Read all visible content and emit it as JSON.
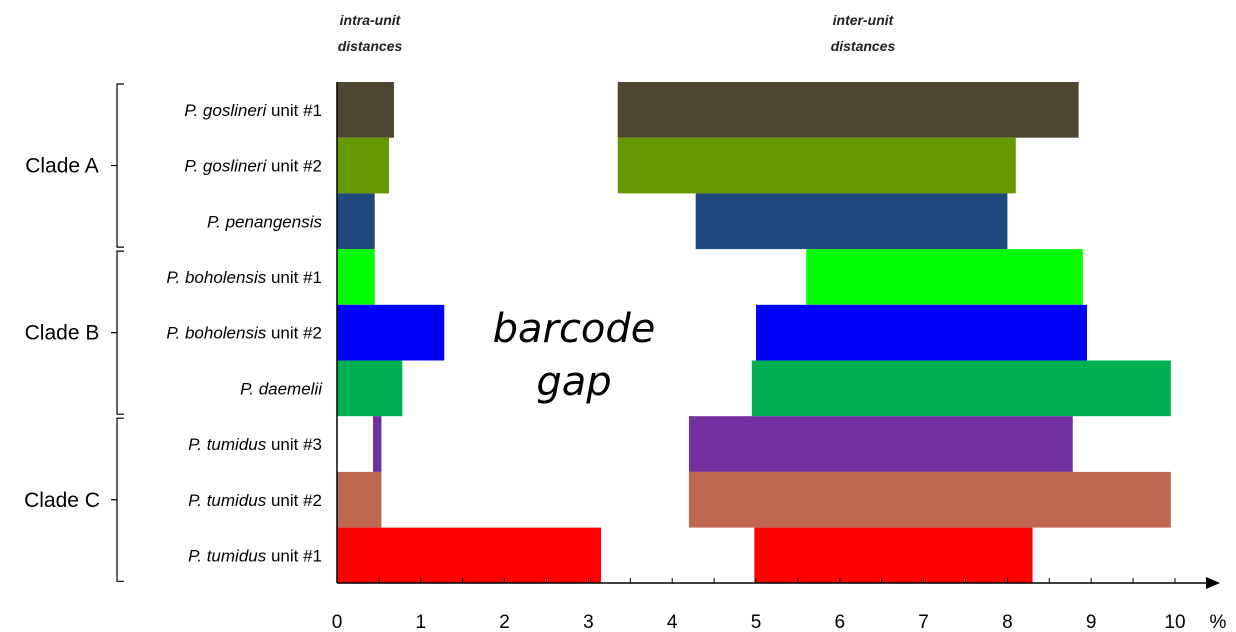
{
  "chart_data": {
    "type": "bar",
    "orientation": "horizontal",
    "column_headers": {
      "intra": [
        "intra-unit",
        "distances"
      ],
      "inter": [
        "inter-unit",
        "distances"
      ]
    },
    "annotation": [
      "barcode",
      "gap"
    ],
    "axis": {
      "unit": "%",
      "xlim": [
        0,
        10
      ],
      "ticks": [
        "0",
        "1",
        "2",
        "3",
        "4",
        "5",
        "6",
        "7",
        "8",
        "9",
        "10"
      ]
    },
    "clades": [
      {
        "label": "Clade A",
        "rows": [
          0,
          1,
          2
        ]
      },
      {
        "label": "Clade B",
        "rows": [
          3,
          4,
          5
        ]
      },
      {
        "label": "Clade C",
        "rows": [
          6,
          7,
          8
        ]
      }
    ],
    "rows": [
      {
        "species": "P. goslineri",
        "unit": "unit #1",
        "color": "#4d4630",
        "intra": [
          0,
          0.68
        ],
        "inter": [
          3.35,
          8.85
        ]
      },
      {
        "species": "P. goslineri",
        "unit": "unit #2",
        "color": "#669900",
        "intra": [
          0,
          0.62
        ],
        "inter": [
          3.35,
          8.1
        ]
      },
      {
        "species": "P. penangensis",
        "unit": "",
        "color": "#1f497d",
        "intra": [
          0,
          0.45
        ],
        "inter": [
          4.28,
          8.0
        ]
      },
      {
        "species": "P. boholensis",
        "unit": "unit #1",
        "color": "#00ff00",
        "intra": [
          0,
          0.45
        ],
        "inter": [
          5.6,
          8.9
        ]
      },
      {
        "species": "P. boholensis",
        "unit": "unit #2",
        "color": "#0000ff",
        "intra": [
          0,
          1.28
        ],
        "inter": [
          5.0,
          8.95
        ]
      },
      {
        "species": "P. daemelii",
        "unit": "",
        "color": "#00b050",
        "intra": [
          0,
          0.78
        ],
        "inter": [
          4.95,
          9.95
        ]
      },
      {
        "species": "P. tumidus",
        "unit": "unit #3",
        "color": "#7030a0",
        "intra": [
          0.43,
          0.53
        ],
        "inter": [
          4.2,
          8.78
        ]
      },
      {
        "species": "P. tumidus",
        "unit": "unit #2",
        "color": "#c0674f",
        "intra": [
          0,
          0.53
        ],
        "inter": [
          4.2,
          9.95
        ]
      },
      {
        "species": "P. tumidus",
        "unit": "unit #1",
        "color": "#ff0000",
        "intra": [
          0,
          3.15
        ],
        "inter": [
          4.98,
          8.3
        ]
      }
    ]
  }
}
